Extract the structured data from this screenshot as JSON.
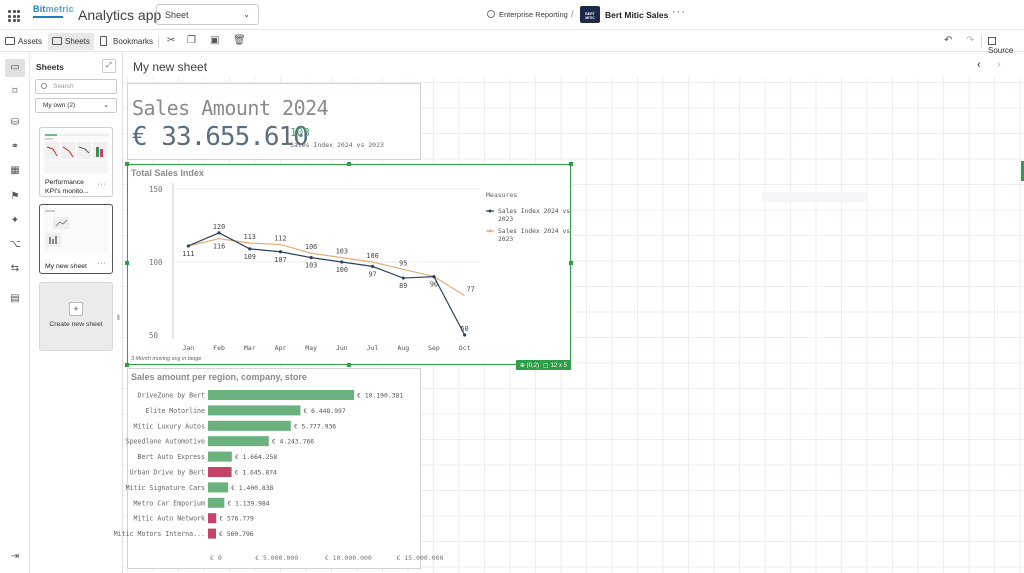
{
  "brand": {
    "name_a": "Bit",
    "name_b": "metric"
  },
  "app": {
    "title": "Analytics app",
    "view_select": "Sheet",
    "space_label": "Enterprise Reporting",
    "space_sep": "/",
    "space_name": "Bert Mitic Sales",
    "space_badge": "BERT MITIC",
    "more": "···"
  },
  "toolbar": {
    "assets": "Assets",
    "sheets": "Sheets",
    "bookmarks": "Bookmarks",
    "source": "Source"
  },
  "sheets_panel": {
    "title": "Sheets",
    "search_placeholder": "Search",
    "filter": "My own (2)",
    "items": [
      {
        "label_line1": "Performance",
        "label_line2": "KPI's monito..."
      },
      {
        "label_line1": "My new sheet",
        "label_line2": ""
      }
    ],
    "create_label": "Create new sheet"
  },
  "canvas": {
    "sheet_title": "My new sheet"
  },
  "kpi": {
    "title": "Sales Amount 2024",
    "value": "€ 33.655.610",
    "secondary_value": "103",
    "secondary_label": "Sales Index 2024 vs 2023"
  },
  "line_chart": {
    "title": "Total Sales Index",
    "footnote": "3 Month moving avg in beige",
    "selection_pos": "(0,2)",
    "selection_size": "12 x 5"
  },
  "bar_chart": {
    "title": "Sales amount per region, company, store"
  },
  "colors": {
    "accent_green": "#2e9e48",
    "line_main": "#2f4159",
    "line_avg": "#e0b07a",
    "bar_green": "#6ab17e",
    "bar_red": "#c3436a"
  },
  "chart_data": [
    {
      "type": "line",
      "title": "Total Sales Index",
      "categories": [
        "Jan",
        "Feb",
        "Mar",
        "Apr",
        "May",
        "Jun",
        "Jul",
        "Aug",
        "Sep",
        "Oct"
      ],
      "series": [
        {
          "name": "Sales Index 2024 vs 2023",
          "values": [
            111,
            120,
            109,
            107,
            103,
            100,
            97,
            89,
            90,
            50
          ],
          "color": "#2f4159"
        },
        {
          "name": "Sales Index 2024 vs 2023",
          "values": [
            111,
            116,
            113,
            112,
            106,
            103,
            100,
            95,
            90,
            77
          ],
          "color": "#e0b07a"
        }
      ],
      "yticks": [
        50,
        100,
        150
      ],
      "ylim": [
        50,
        150
      ],
      "legend_title": "Measures",
      "legend_position": "right"
    },
    {
      "type": "bar",
      "orientation": "horizontal",
      "title": "Sales amount per region, company, store",
      "categories": [
        "DriveZone by Bert",
        "Elite Motorline",
        "Mitic Luxury Autos",
        "Speedlane Automotive",
        "Bert Auto Express",
        "Urban Drive by Bert",
        "Mitic Signature Cars",
        "Metro Car Emporium",
        "Mitic Auto Network",
        "Mitic Motors Interna..."
      ],
      "values": [
        10190381,
        6448997,
        5777936,
        4243766,
        1664258,
        1645874,
        1400838,
        1139984,
        576779,
        560796
      ],
      "value_labels": [
        "€ 10.190.381",
        "€ 6.448.997",
        "€ 5.777.936",
        "€ 4.243.766",
        "€ 1.664.258",
        "€ 1.645.874",
        "€ 1.400.838",
        "€ 1.139.984",
        "€ 576.779",
        "€ 560.796"
      ],
      "colors": [
        "green",
        "green",
        "green",
        "green",
        "green",
        "red",
        "green",
        "green",
        "red",
        "red"
      ],
      "xticks": [
        0,
        5000000,
        10000000,
        15000000
      ],
      "xtick_labels": [
        "€ 0",
        "€ 5.000.000",
        "€ 10.000.000",
        "€ 15.000.000"
      ],
      "xlim": [
        0,
        15000000
      ]
    }
  ]
}
